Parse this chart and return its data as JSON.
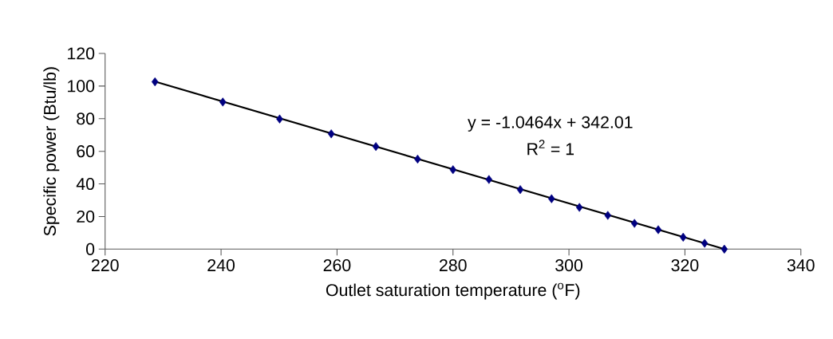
{
  "chart_data": {
    "type": "scatter",
    "xlabel": "Outlet saturation temperature ($^{o}$F)",
    "ylabel": "Specific power (Btu/lb)",
    "xlim": [
      220,
      340
    ],
    "xticks": [
      220,
      240,
      260,
      280,
      300,
      320,
      340
    ],
    "ylim": [
      0,
      120
    ],
    "yticks": [
      0,
      20,
      40,
      60,
      80,
      100,
      120
    ],
    "grid": false,
    "marker": "diamond",
    "series": [
      {
        "color": "#000080",
        "x": [
          228.6,
          240.3,
          250.1,
          259.0,
          266.7,
          273.9,
          280.0,
          286.2,
          291.6,
          297.0,
          301.8,
          306.7,
          311.3,
          315.4,
          319.7,
          323.4,
          326.8
        ],
        "values": [
          102.6,
          90.2,
          79.8,
          70.7,
          62.9,
          55.2,
          48.7,
          42.7,
          36.5,
          30.9,
          25.6,
          20.7,
          15.8,
          11.9,
          7.3,
          3.6,
          0
        ]
      },
      {
        "type": "line",
        "color": "#000000",
        "marker": "none",
        "line_style": "solid",
        "x": [
          228.6,
          326.8
        ],
        "values": [
          102.8,
          0
        ]
      }
    ],
    "annotations": [
      "y = -1.0464x + 342.01",
      "R$^{2}$ = 1"
    ]
  }
}
